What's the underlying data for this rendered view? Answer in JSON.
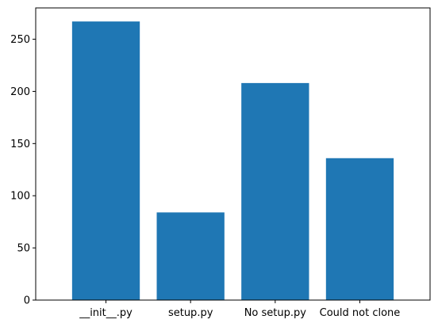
{
  "chart_data": {
    "type": "bar",
    "title": "",
    "xlabel": "",
    "ylabel": "",
    "categories": [
      "__init__.py",
      "setup.py",
      "No setup.py",
      "Could not clone"
    ],
    "values": [
      267,
      84,
      208,
      136
    ],
    "ylim": [
      0,
      280
    ],
    "yticks": [
      0,
      50,
      100,
      150,
      200,
      250
    ],
    "grid": false,
    "legend": "none",
    "bar_color": "#1f77b4"
  }
}
